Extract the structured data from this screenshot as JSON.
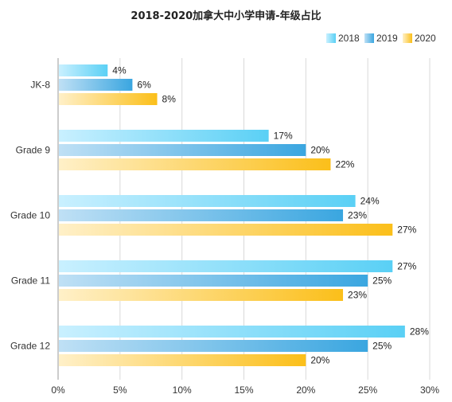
{
  "chart_data": {
    "type": "bar",
    "orientation": "horizontal",
    "title": "2018-2020加拿大中小学申请-年级占比",
    "categories": [
      "JK-8",
      "Grade 9",
      "Grade 10",
      "Grade 11",
      "Grade 12"
    ],
    "series": [
      {
        "name": "2018",
        "values": [
          4,
          17,
          24,
          27,
          28
        ],
        "labels": [
          "4%",
          "17%",
          "24%",
          "27%",
          "28%"
        ],
        "color_from": "#c9f0ff",
        "color_to": "#5ad0f5"
      },
      {
        "name": "2019",
        "values": [
          6,
          20,
          23,
          25,
          25
        ],
        "labels": [
          "6%",
          "20%",
          "23%",
          "25%",
          "25%"
        ],
        "color_from": "#bfe0f5",
        "color_to": "#3aa6e0"
      },
      {
        "name": "2020",
        "values": [
          8,
          22,
          27,
          23,
          20
        ],
        "labels": [
          "8%",
          "22%",
          "27%",
          "23%",
          "20%"
        ],
        "color_from": "#fff0c8",
        "color_to": "#fbbf1a"
      }
    ],
    "xlim": [
      0,
      30
    ],
    "x_ticks": [
      0,
      5,
      10,
      15,
      20,
      25,
      30
    ],
    "x_tick_labels": [
      "0%",
      "5%",
      "10%",
      "15%",
      "20%",
      "25%",
      "30%"
    ],
    "grid": true,
    "legend_position": "top-right"
  }
}
